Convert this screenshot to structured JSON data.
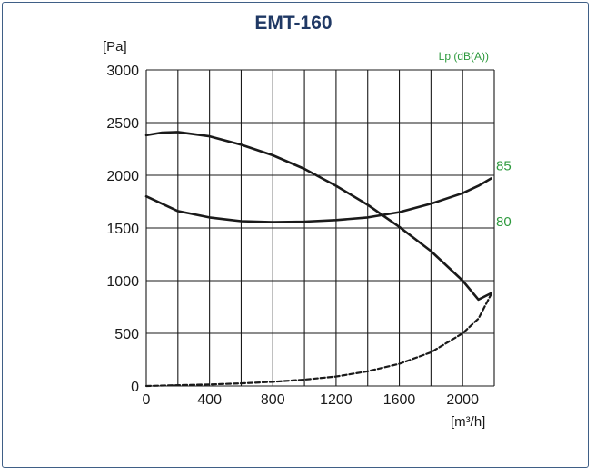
{
  "chart_data": {
    "type": "line",
    "title": "EMT-160",
    "ylabel": "[Pa]",
    "xlabel": "[m³/h]",
    "secondary_label": "Lp (dB(A))",
    "xlim": [
      0,
      2200
    ],
    "ylim": [
      0,
      3000
    ],
    "x_ticks": [
      0,
      400,
      800,
      1200,
      1600,
      2000
    ],
    "y_ticks": [
      0,
      500,
      1000,
      1500,
      2000,
      2500,
      3000
    ],
    "x_tick_labels": [
      "0",
      "400",
      "800",
      "1200",
      "1600",
      "2000"
    ],
    "y_tick_labels": [
      "0",
      "500",
      "1000",
      "1500",
      "2000",
      "2500",
      "3000"
    ],
    "x_gridlines": [
      0,
      200,
      400,
      600,
      800,
      1000,
      1200,
      1400,
      1600,
      1800,
      2000,
      2200
    ],
    "y_gridlines": [
      0,
      500,
      1000,
      1500,
      2000,
      2500,
      3000
    ],
    "grid": true,
    "sound_level_labels": [
      {
        "text": "85",
        "y": 2090
      },
      {
        "text": "80",
        "y": 1560
      }
    ],
    "series": [
      {
        "style": "solid",
        "x": [
          0,
          100,
          200,
          400,
          600,
          800,
          1000,
          1200,
          1400,
          1600,
          1800,
          2000,
          2100,
          2180
        ],
        "y": [
          2380,
          2405,
          2410,
          2370,
          2290,
          2190,
          2060,
          1900,
          1720,
          1510,
          1280,
          1000,
          820,
          880
        ]
      },
      {
        "style": "solid",
        "x": [
          0,
          200,
          400,
          600,
          800,
          1000,
          1200,
          1400,
          1600,
          1800,
          2000,
          2100,
          2180
        ],
        "y": [
          1800,
          1660,
          1600,
          1565,
          1555,
          1560,
          1575,
          1600,
          1650,
          1730,
          1830,
          1900,
          1970
        ]
      },
      {
        "style": "dashed",
        "x": [
          0,
          200,
          400,
          600,
          800,
          1000,
          1200,
          1400,
          1600,
          1800,
          2000,
          2100,
          2180
        ],
        "y": [
          0,
          8,
          15,
          25,
          40,
          60,
          90,
          140,
          210,
          320,
          500,
          640,
          870
        ]
      }
    ],
    "colors": {
      "title": "#1f3864",
      "curve": "#1a1a1a",
      "grid": "#1a1a1a",
      "sound_level": "#2e9a3e",
      "frame": "#3f5f86"
    }
  }
}
